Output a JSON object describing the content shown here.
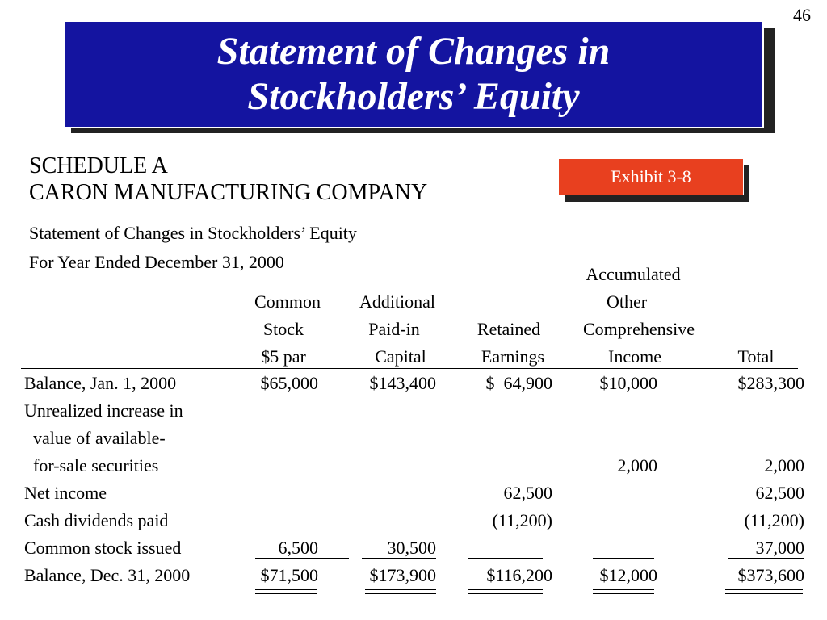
{
  "slide_number": "46",
  "title": {
    "line1": "Statement of Changes in",
    "line2": "Stockholders’ Equity",
    "background_color": "#1414a0"
  },
  "exhibit_badge": "Exhibit 3-8",
  "schedule": "SCHEDULE A",
  "company": "CARON MANUFACTURING COMPANY",
  "statement_title": "Statement of Changes in Stockholders’ Equity",
  "period": "For Year Ended December 31, 2000",
  "columns": [
    {
      "line1": "",
      "line2": "Common",
      "line3": "Stock",
      "line4": "$5 par"
    },
    {
      "line1": "",
      "line2": "Additional",
      "line3": "Paid-in",
      "line4": "Capital"
    },
    {
      "line1": "",
      "line2": "",
      "line3": "Retained",
      "line4": "Earnings"
    },
    {
      "line1": "Accumulated",
      "line2": "Other",
      "line3": "Comprehensive",
      "line4": "Income"
    },
    {
      "line1": "",
      "line2": "",
      "line3": "",
      "line4": "Total"
    }
  ],
  "rows": [
    {
      "label": "Balance, Jan. 1, 2000",
      "values": [
        "$65,000",
        "$143,400",
        "$  64,900",
        "$10,000",
        "$283,300"
      ]
    },
    {
      "label": "Unrealized increase in",
      "values": [
        "",
        "",
        "",
        "",
        ""
      ]
    },
    {
      "label": "  value of available-",
      "values": [
        "",
        "",
        "",
        "",
        ""
      ]
    },
    {
      "label": "  for-sale securities",
      "values": [
        "",
        "",
        "",
        "2,000",
        "2,000"
      ]
    },
    {
      "label": "Net income",
      "values": [
        "",
        "",
        "62,500",
        "",
        "62,500"
      ]
    },
    {
      "label": "Cash dividends paid",
      "values": [
        "",
        "",
        "(11,200)",
        "",
        "(11,200)"
      ]
    },
    {
      "label": "Common stock issued",
      "values": [
        "6,500",
        "30,500",
        "",
        "",
        "37,000"
      ]
    },
    {
      "label": "Balance, Dec. 31, 2000",
      "values": [
        "$71,500",
        "$173,900",
        "$116,200",
        "$12,000",
        "$373,600"
      ]
    }
  ]
}
